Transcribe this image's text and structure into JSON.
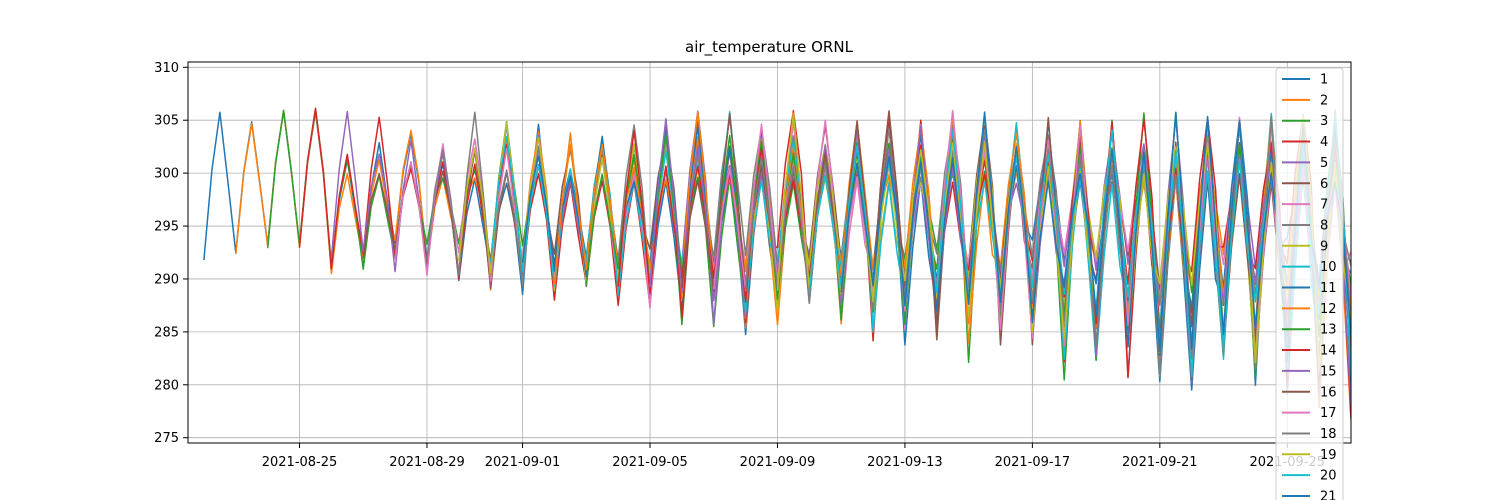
{
  "chart_data": {
    "type": "line",
    "title": "air_temperature ORNL",
    "xlabel": "",
    "ylabel": "",
    "x_range": [
      "2021-08-21T12:00",
      "2021-09-27T00:00"
    ],
    "ylim": [
      274.5,
      310.5
    ],
    "grid": true,
    "legend_position": "top-right",
    "x_ticks": [
      "2021-08-25",
      "2021-08-29",
      "2021-09-01",
      "2021-09-05",
      "2021-09-09",
      "2021-09-13",
      "2021-09-17",
      "2021-09-21",
      "2021-09-25"
    ],
    "y_ticks": [
      275,
      280,
      285,
      290,
      295,
      300,
      305,
      310
    ],
    "start_date": "2021-08-22",
    "last_overlap_day": "2021-08-25",
    "day_count": 37,
    "shared_series": [
      {
        "min": 292,
        "max": 305.5
      },
      {
        "min": 292.5,
        "max": 305
      },
      {
        "min": 293,
        "max": 306
      },
      {
        "min": 293,
        "max": 306
      }
    ],
    "series": [
      {
        "name": "1",
        "color": "#1f77b4"
      },
      {
        "name": "2",
        "color": "#ff7f0e"
      },
      {
        "name": "3",
        "color": "#2ca02c"
      },
      {
        "name": "4",
        "color": "#d62728"
      },
      {
        "name": "5",
        "color": "#9467bd"
      },
      {
        "name": "6",
        "color": "#8c564b"
      },
      {
        "name": "7",
        "color": "#e377c2"
      },
      {
        "name": "8",
        "color": "#7f7f7f"
      },
      {
        "name": "9",
        "color": "#bcbd22"
      },
      {
        "name": "10",
        "color": "#17becf"
      },
      {
        "name": "11",
        "color": "#1f77b4"
      },
      {
        "name": "12",
        "color": "#ff7f0e"
      },
      {
        "name": "13",
        "color": "#2ca02c"
      },
      {
        "name": "14",
        "color": "#d62728"
      },
      {
        "name": "15",
        "color": "#9467bd"
      },
      {
        "name": "16",
        "color": "#8c564b"
      },
      {
        "name": "17",
        "color": "#e377c2"
      },
      {
        "name": "18",
        "color": "#7f7f7f"
      },
      {
        "name": "19",
        "color": "#bcbd22"
      },
      {
        "name": "20",
        "color": "#17becf"
      },
      {
        "name": "21",
        "color": "#1f77b4"
      }
    ]
  }
}
